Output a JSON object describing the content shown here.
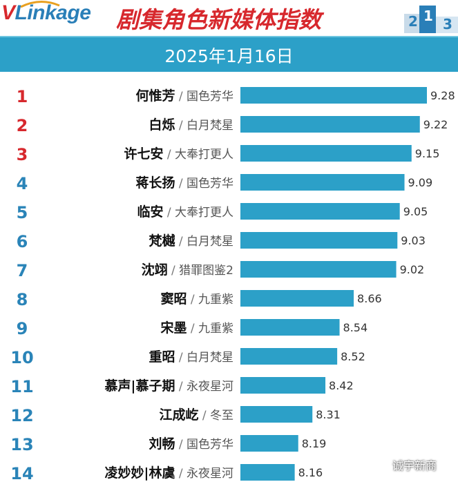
{
  "logo": {
    "v": "V",
    "rest": "Linkage"
  },
  "title": "剧集角色新媒体指数",
  "date": "2025年1月16日",
  "watermark": "诚宇新商",
  "colors": {
    "bar": "#2ca0c8",
    "rank_top": "#d7282d",
    "rank_other": "#2a84b8",
    "title": "#d7282d"
  },
  "chart_data": {
    "type": "bar",
    "orientation": "horizontal",
    "title": "剧集角色新媒体指数",
    "subtitle": "2025年1月16日",
    "series": [
      {
        "name": "新媒体指数",
        "values": [
          9.28,
          9.22,
          9.15,
          9.09,
          9.05,
          9.03,
          9.02,
          8.66,
          8.54,
          8.52,
          8.42,
          8.31,
          8.19,
          8.16
        ]
      }
    ],
    "rows": [
      {
        "rank": "1",
        "name": "何惟芳",
        "drama": "国色芳华",
        "value": 9.28,
        "label": "9.28"
      },
      {
        "rank": "2",
        "name": "白烁",
        "drama": "白月梵星",
        "value": 9.22,
        "label": "9.22"
      },
      {
        "rank": "3",
        "name": "许七安",
        "drama": "大奉打更人",
        "value": 9.15,
        "label": "9.15"
      },
      {
        "rank": "4",
        "name": "蒋长扬",
        "drama": "国色芳华",
        "value": 9.09,
        "label": "9.09"
      },
      {
        "rank": "5",
        "name": "临安",
        "drama": "大奉打更人",
        "value": 9.05,
        "label": "9.05"
      },
      {
        "rank": "6",
        "name": "梵樾",
        "drama": "白月梵星",
        "value": 9.03,
        "label": "9.03"
      },
      {
        "rank": "7",
        "name": "沈翊",
        "drama": "猎罪图鉴2",
        "value": 9.02,
        "label": "9.02"
      },
      {
        "rank": "8",
        "name": "窦昭",
        "drama": "九重紫",
        "value": 8.66,
        "label": "8.66"
      },
      {
        "rank": "9",
        "name": "宋墨",
        "drama": "九重紫",
        "value": 8.54,
        "label": "8.54"
      },
      {
        "rank": "10",
        "name": "重昭",
        "drama": "白月梵星",
        "value": 8.52,
        "label": "8.52"
      },
      {
        "rank": "11",
        "name": "慕声|慕子期",
        "drama": "永夜星河",
        "value": 8.42,
        "label": "8.42"
      },
      {
        "rank": "12",
        "name": "江成屹",
        "drama": "冬至",
        "value": 8.31,
        "label": "8.31"
      },
      {
        "rank": "13",
        "name": "刘畅",
        "drama": "国色芳华",
        "value": 8.19,
        "label": "8.19"
      },
      {
        "rank": "14",
        "name": "凌妙妙|林虞",
        "drama": "永夜星河",
        "value": 8.16,
        "label": "8.16"
      }
    ],
    "separator": "/",
    "axis_min": 7.7,
    "axis_max": 9.28
  }
}
